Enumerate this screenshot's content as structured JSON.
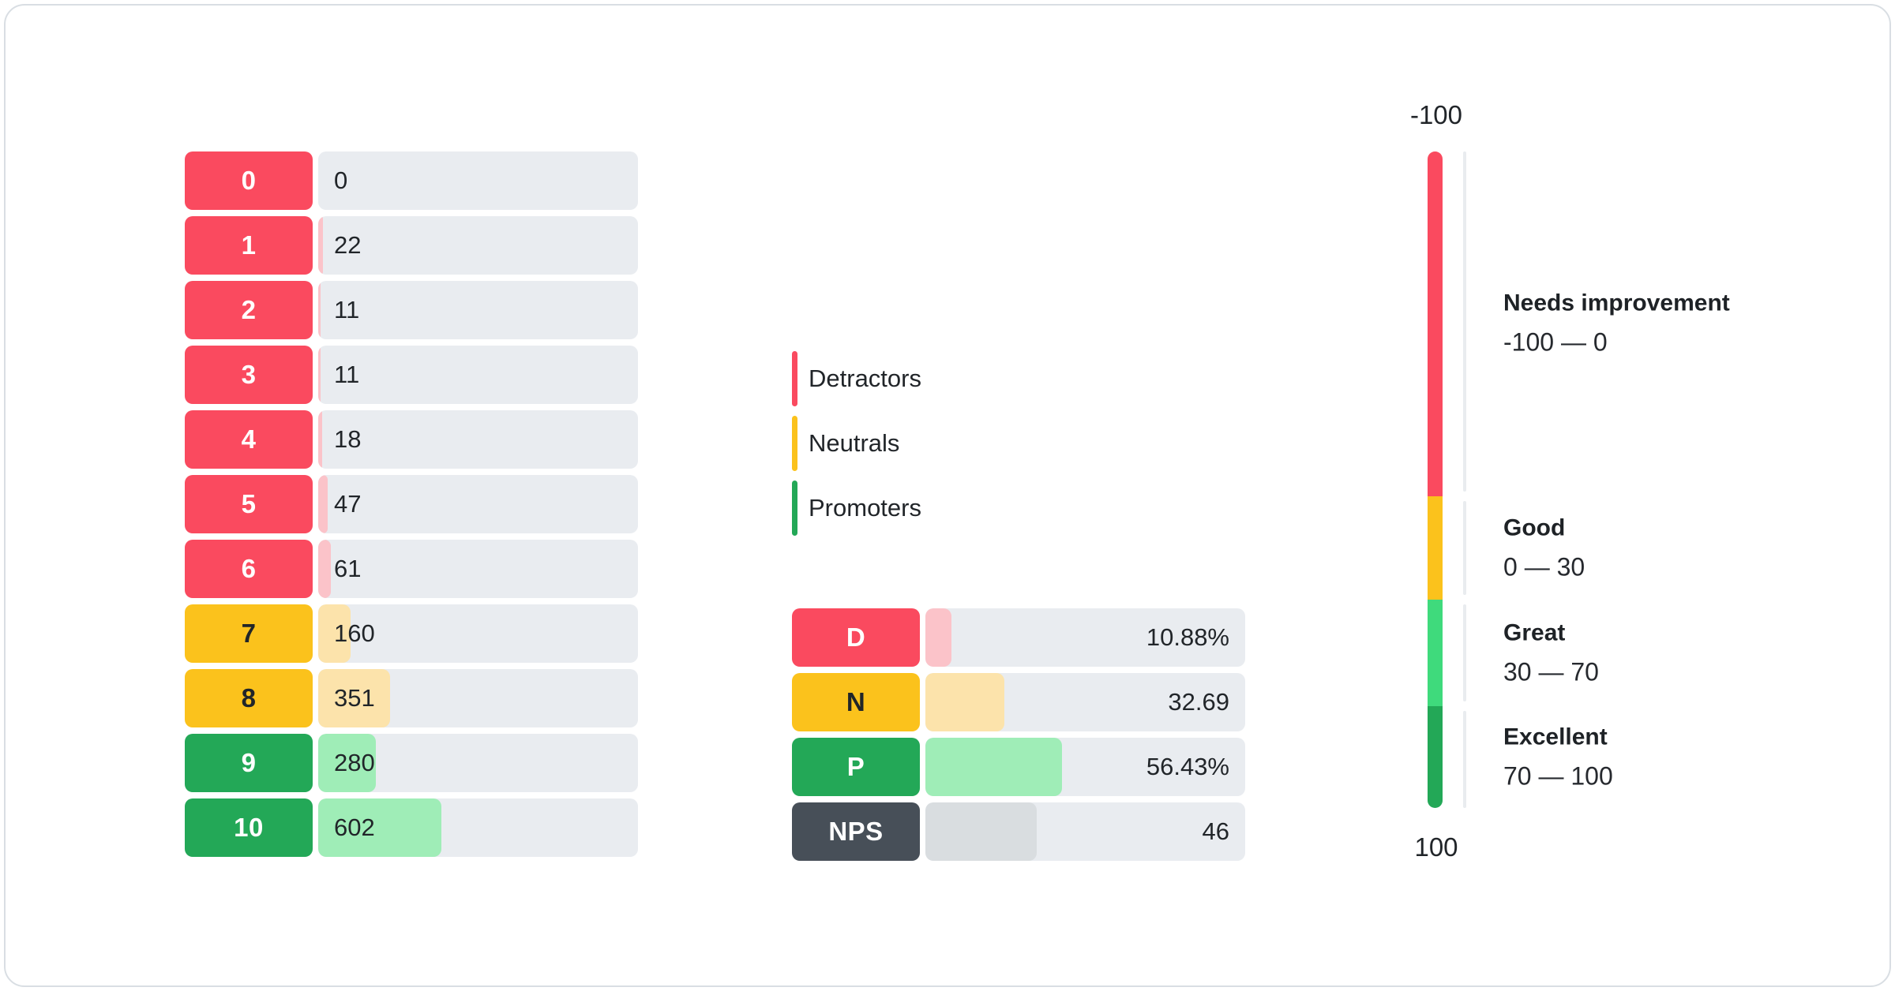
{
  "distribution": {
    "rows": [
      {
        "score": "0",
        "count": "0",
        "value": 0,
        "category": "detractor"
      },
      {
        "score": "1",
        "count": "22",
        "value": 22,
        "category": "detractor"
      },
      {
        "score": "2",
        "count": "11",
        "value": 11,
        "category": "detractor"
      },
      {
        "score": "3",
        "count": "11",
        "value": 11,
        "category": "detractor"
      },
      {
        "score": "4",
        "count": "18",
        "value": 18,
        "category": "detractor"
      },
      {
        "score": "5",
        "count": "47",
        "value": 47,
        "category": "detractor"
      },
      {
        "score": "6",
        "count": "61",
        "value": 61,
        "category": "detractor"
      },
      {
        "score": "7",
        "count": "160",
        "value": 160,
        "category": "neutral"
      },
      {
        "score": "8",
        "count": "351",
        "value": 351,
        "category": "neutral"
      },
      {
        "score": "9",
        "count": "280",
        "value": 280,
        "category": "promoter"
      },
      {
        "score": "10",
        "count": "602",
        "value": 602,
        "category": "promoter"
      }
    ]
  },
  "legend": {
    "items": [
      {
        "label": "Detractors",
        "category": "detractor"
      },
      {
        "label": "Neutrals",
        "category": "neutral"
      },
      {
        "label": "Promoters",
        "category": "promoter"
      }
    ]
  },
  "summary": {
    "rows": [
      {
        "label": "D",
        "value": 10.88,
        "value_text": "10.88%",
        "category": "detractor"
      },
      {
        "label": "N",
        "value": 32.69,
        "value_text": "32.69",
        "category": "neutral"
      },
      {
        "label": "P",
        "value": 56.43,
        "value_text": "56.43%",
        "category": "promoter"
      },
      {
        "label": "NPS",
        "value": 46,
        "value_text": "46",
        "category": "nps"
      }
    ]
  },
  "gauge": {
    "axis_top_label": "-100",
    "axis_bottom_label": "100",
    "segments": [
      {
        "name": "Needs improvement",
        "range_text": "-100 — 0",
        "from": -100,
        "to": 0,
        "category": "detractor",
        "height_pct": 52.5
      },
      {
        "name": "Good",
        "range_text": "0 — 30",
        "from": 0,
        "to": 30,
        "category": "neutral",
        "height_pct": 15.8
      },
      {
        "name": "Great",
        "range_text": "30 — 70",
        "from": 30,
        "to": 70,
        "category": "great",
        "height_pct": 16.2
      },
      {
        "name": "Excellent",
        "range_text": "70 — 100",
        "from": 70,
        "to": 100,
        "category": "promoter",
        "height_pct": 15.5
      }
    ]
  },
  "colors": {
    "detractor": "#FA4A5F",
    "detractor_fill": "#FBC3C9",
    "neutral": "#FBC21C",
    "neutral_fill": "#FCE3AB",
    "promoter": "#23A857",
    "promoter_fill": "#9FEDB7",
    "great": "#3FDA7C",
    "nps": "#474F58",
    "nps_fill": "#D9DDE0",
    "track": "#E9ECF0",
    "axis_line": "#E9ECEF",
    "card_border": "#D9DEE3",
    "text_dark": "#212529"
  },
  "chart_data": [
    {
      "type": "bar",
      "title": "NPS score distribution (0-10)",
      "orientation": "horizontal",
      "categories": [
        "0",
        "1",
        "2",
        "3",
        "4",
        "5",
        "6",
        "7",
        "8",
        "9",
        "10"
      ],
      "values": [
        0,
        22,
        11,
        11,
        18,
        47,
        61,
        160,
        351,
        280,
        602
      ],
      "groups": [
        "detractor",
        "detractor",
        "detractor",
        "detractor",
        "detractor",
        "detractor",
        "detractor",
        "neutral",
        "neutral",
        "promoter",
        "promoter"
      ],
      "legend_entries": [
        "Detractors",
        "Neutrals",
        "Promoters"
      ],
      "legend_position": "right",
      "grid": false
    },
    {
      "type": "bar",
      "title": "NPS summary",
      "orientation": "horizontal",
      "categories": [
        "D",
        "N",
        "P",
        "NPS"
      ],
      "values": [
        10.88,
        32.69,
        56.43,
        46
      ],
      "value_labels": [
        "10.88%",
        "32.69",
        "56.43%",
        "46"
      ]
    },
    {
      "type": "bar",
      "title": "NPS scale gauge",
      "orientation": "vertical",
      "axis_range": [
        -100,
        100
      ],
      "axis_top_label": "-100",
      "axis_bottom_label": "100",
      "segments": [
        {
          "label": "Needs improvement",
          "from": -100,
          "to": 0
        },
        {
          "label": "Good",
          "from": 0,
          "to": 30
        },
        {
          "label": "Great",
          "from": 30,
          "to": 70
        },
        {
          "label": "Excellent",
          "from": 70,
          "to": 100
        }
      ]
    }
  ]
}
